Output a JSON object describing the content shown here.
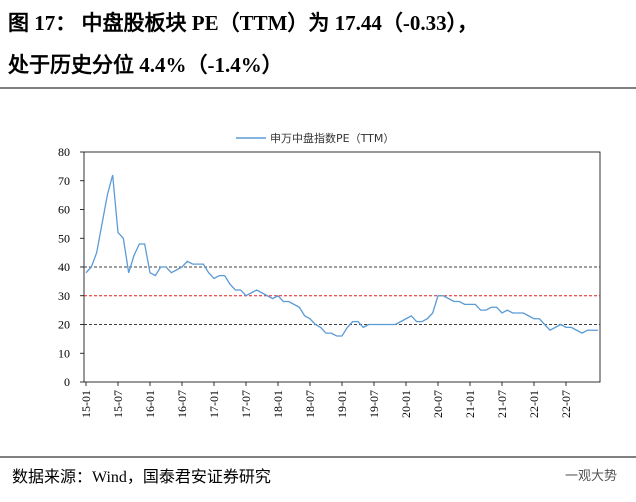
{
  "chart_data": {
    "type": "line",
    "title": "图 17：  中盘股板块 PE（TTM）为 17.44（-0.33），",
    "subtitle": "处于历史分位 4.4%（-1.4%）",
    "source": "数据来源：Wind，国泰君安证券研究",
    "watermark": "一观大势",
    "categories": [
      "15-01",
      null,
      null,
      null,
      null,
      null,
      "15-07",
      null,
      null,
      null,
      null,
      null,
      "16-01",
      null,
      null,
      null,
      null,
      null,
      "16-07",
      null,
      null,
      null,
      null,
      null,
      "17-01",
      null,
      null,
      null,
      null,
      null,
      "17-07",
      null,
      null,
      null,
      null,
      null,
      "18-01",
      null,
      null,
      null,
      null,
      null,
      "18-07",
      null,
      null,
      null,
      null,
      null,
      "19-01",
      null,
      null,
      null,
      null,
      null,
      "19-07",
      null,
      null,
      null,
      null,
      null,
      "20-01",
      null,
      null,
      null,
      null,
      null,
      "20-07",
      null,
      null,
      null,
      null,
      null,
      "21-01",
      null,
      null,
      null,
      null,
      null,
      "21-07",
      null,
      null,
      null,
      null,
      null,
      "22-01",
      null,
      null,
      null,
      null,
      null,
      "22-07",
      null,
      null,
      null,
      null,
      null,
      null
    ],
    "series": [
      {
        "name": "申万中盘指数PE（TTM）",
        "color": "#5b9bd5",
        "values": [
          38,
          40,
          45,
          55,
          65,
          72,
          52,
          50,
          38,
          44,
          48,
          48,
          38,
          37,
          40,
          40,
          38,
          39,
          40,
          42,
          41,
          41,
          41,
          38,
          36,
          37,
          37,
          34,
          32,
          32,
          30,
          31,
          32,
          31,
          30,
          29,
          30,
          28,
          28,
          27,
          26,
          23,
          22,
          20,
          19,
          17,
          17,
          16,
          16,
          19,
          21,
          21,
          19,
          20,
          20,
          20,
          20,
          20,
          20,
          21,
          22,
          23,
          21,
          21,
          22,
          24,
          30,
          30,
          29,
          28,
          28,
          27,
          27,
          27,
          25,
          25,
          26,
          26,
          24,
          25,
          24,
          24,
          24,
          23,
          22,
          22,
          20,
          18,
          19,
          20,
          19,
          19,
          18,
          17,
          18,
          18,
          18
        ]
      }
    ],
    "ylim": [
      0,
      80
    ],
    "yticks": [
      0,
      10,
      20,
      30,
      40,
      50,
      60,
      70,
      80
    ],
    "reference_lines": [
      {
        "value": 40,
        "color": "#404040"
      },
      {
        "value": 30,
        "color": "#e02020"
      },
      {
        "value": 20,
        "color": "#404040"
      }
    ],
    "legend": "top"
  }
}
